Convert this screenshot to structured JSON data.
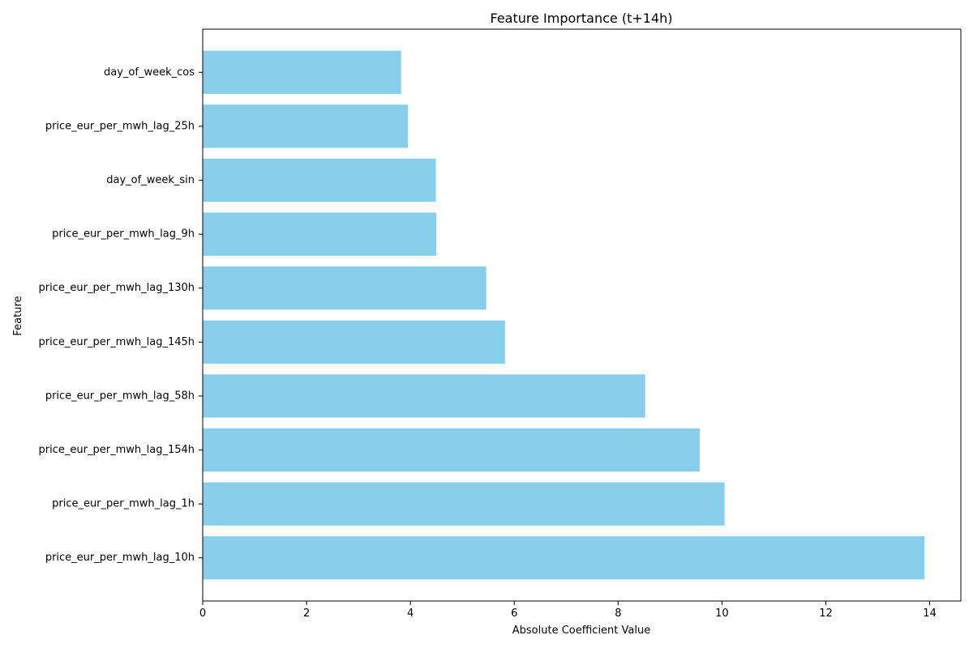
{
  "chart_data": {
    "type": "bar",
    "orientation": "horizontal",
    "title": "Feature Importance (t+14h)",
    "xlabel": "Absolute Coefficient Value",
    "ylabel": "Feature",
    "xlim": [
      0,
      14.6
    ],
    "xticks": [
      0,
      2,
      4,
      6,
      8,
      10,
      12,
      14
    ],
    "categories": [
      "price_eur_per_mwh_lag_10h",
      "price_eur_per_mwh_lag_1h",
      "price_eur_per_mwh_lag_154h",
      "price_eur_per_mwh_lag_58h",
      "price_eur_per_mwh_lag_145h",
      "price_eur_per_mwh_lag_130h",
      "price_eur_per_mwh_lag_9h",
      "day_of_week_sin",
      "price_eur_per_mwh_lag_25h",
      "day_of_week_cos"
    ],
    "values": [
      13.9,
      10.05,
      9.57,
      8.52,
      5.82,
      5.46,
      4.5,
      4.49,
      3.95,
      3.82
    ],
    "bar_color": "#87ceeb",
    "grid": false,
    "legend": "none"
  }
}
